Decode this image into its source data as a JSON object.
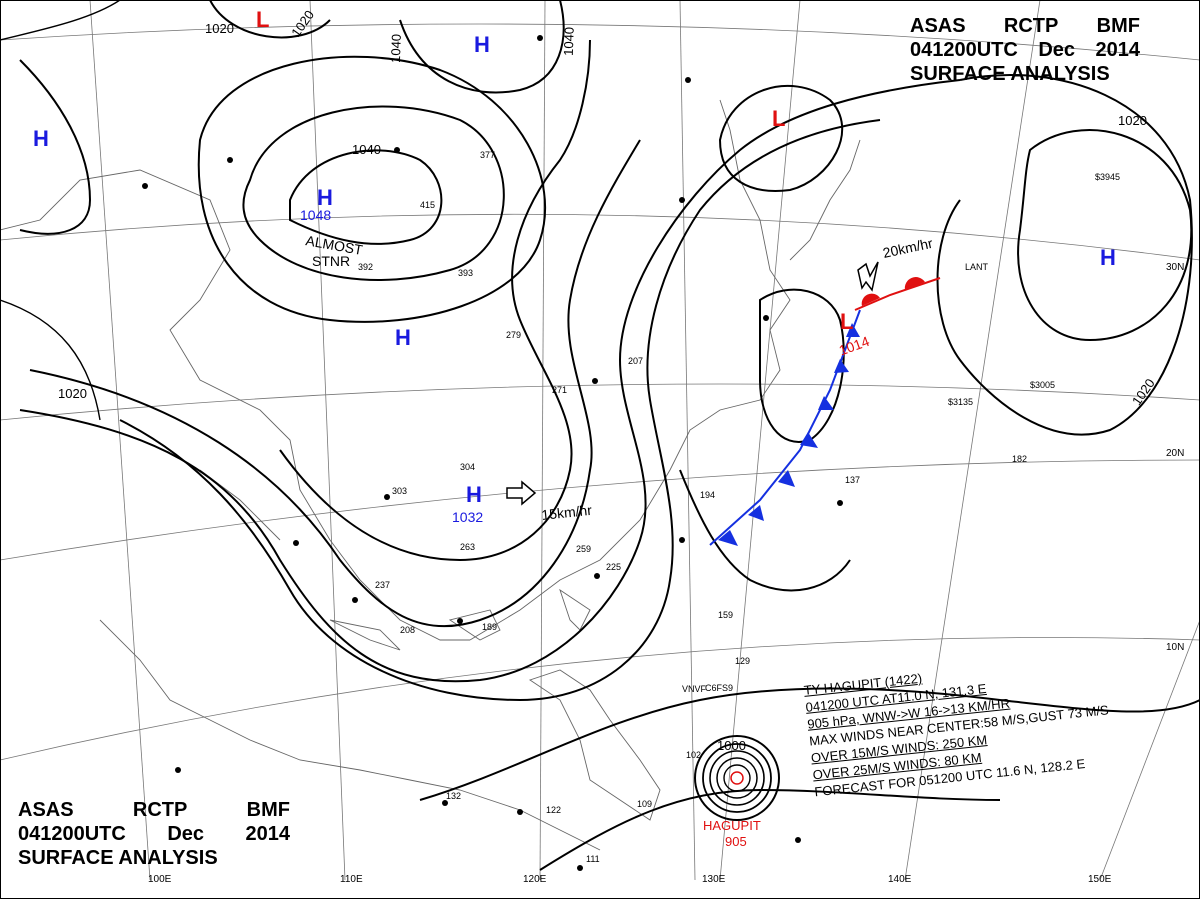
{
  "header_top": {
    "line1": [
      "ASAS",
      "RCTP",
      "BMF"
    ],
    "line2": [
      "041200UTC",
      "Dec",
      "2014"
    ],
    "line3": "SURFACE ANALYSIS"
  },
  "header_bottom": {
    "line1": [
      "ASAS",
      "RCTP",
      "BMF"
    ],
    "line2": [
      "041200UTC",
      "Dec",
      "2014"
    ],
    "line3": "SURFACE ANALYSIS"
  },
  "pressure_centers": [
    {
      "type": "H",
      "value": "1048",
      "color": "#1a1adf"
    },
    {
      "type": "H",
      "value": "1032",
      "color": "#1a1adf"
    },
    {
      "type": "H",
      "value": "",
      "color": "#1a1adf"
    },
    {
      "type": "H",
      "value": "",
      "color": "#1a1adf"
    },
    {
      "type": "H",
      "value": "",
      "color": "#1a1adf"
    },
    {
      "type": "H",
      "value": "",
      "color": "#1a1adf"
    },
    {
      "type": "L",
      "value": "",
      "color": "#e01010"
    },
    {
      "type": "L",
      "value": "",
      "color": "#e01010"
    },
    {
      "type": "L",
      "value": "1014",
      "color": "#e01010"
    }
  ],
  "isobar_labels": [
    "1020",
    "1020",
    "1040",
    "1040",
    "1040",
    "1020",
    "1020",
    "1020",
    "1000"
  ],
  "notes": {
    "almost": "ALMOST",
    "stnr": "STNR",
    "motion_1": "15km/hr",
    "motion_2": "20km/hr"
  },
  "typhoon": {
    "name": "HAGUPIT",
    "pressure": "905",
    "bulletin": [
      "TY  HAGUPIT  (1422)",
      "041200 UTC  AT11.0 N, 131.3 E",
      "905 hPa, WNW->W  16->13 KM/HR",
      "MAX WINDS NEAR CENTER:58 M/S,GUST 73 M/S",
      "OVER 15M/S WINDS: 250 KM",
      "OVER 25M/S WINDS: 80 KM",
      "FORECAST FOR 051200 UTC 11.6 N, 128.2 E"
    ]
  },
  "grid_labels": {
    "lon": [
      "100E",
      "110E",
      "120E",
      "130E",
      "140E",
      "150E"
    ],
    "lat": [
      "30N",
      "20N",
      "10N"
    ]
  },
  "colors": {
    "high": "#1a1adf",
    "low": "#e01010",
    "cold_front": "#1530e0",
    "warm_front": "#e01010",
    "isobar": "#000000"
  },
  "station_samples": [
    "1032",
    "15km/hr",
    "VNVF",
    "C6FS9",
    "LANT",
    "$3945",
    "$3135",
    "$3005"
  ]
}
